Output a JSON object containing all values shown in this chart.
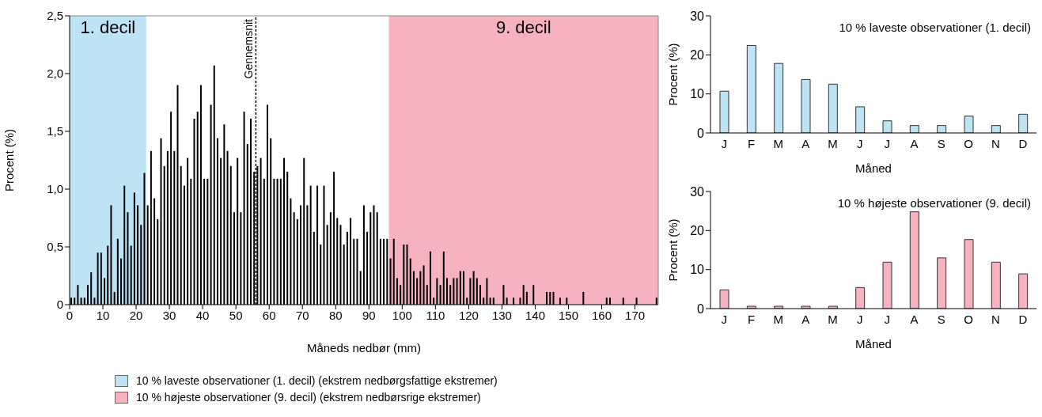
{
  "chart_data": [
    {
      "type": "histogram",
      "xlabel": "Måneds nedbør (mm)",
      "ylabel": "Procent (%)",
      "color": "#000000",
      "bins": [
        0,
        1,
        2,
        3,
        4,
        5,
        6,
        7,
        8,
        9,
        10,
        11,
        12,
        13,
        14,
        15,
        16,
        17,
        18,
        19,
        20,
        21,
        22,
        23,
        24,
        25,
        26,
        27,
        28,
        29,
        30,
        31,
        32,
        33,
        34,
        35,
        36,
        37,
        38,
        39,
        40,
        41,
        42,
        43,
        44,
        45,
        46,
        47,
        48,
        49,
        50,
        51,
        52,
        53,
        54,
        55,
        56,
        57,
        58,
        59,
        60,
        61,
        62,
        63,
        64,
        65,
        66,
        67,
        68,
        69,
        70,
        71,
        72,
        73,
        74,
        75,
        76,
        77,
        78,
        79,
        80,
        81,
        82,
        83,
        84,
        85,
        86,
        87,
        88,
        89,
        90,
        91,
        92,
        93,
        94,
        95,
        96,
        97,
        98,
        99,
        100,
        101,
        102,
        103,
        104,
        105,
        106,
        107,
        108,
        109,
        110,
        111,
        112,
        113,
        114,
        115,
        116,
        117,
        118,
        119,
        120,
        121,
        122,
        123,
        124,
        125,
        126,
        127,
        128,
        129,
        130,
        131,
        132,
        133,
        134,
        135,
        136,
        137,
        138,
        139,
        140,
        141,
        142,
        143,
        144,
        145,
        146,
        147,
        148,
        149,
        150,
        151,
        152,
        153,
        154,
        155,
        156,
        157,
        158,
        159,
        160,
        161,
        162,
        163,
        164,
        165,
        166,
        167,
        168,
        169,
        170,
        171,
        172,
        173,
        174,
        175,
        176,
        177
      ],
      "values": [
        0.06,
        0.06,
        0.17,
        0.06,
        0.06,
        0.17,
        0.28,
        0.06,
        0.45,
        0.45,
        0.23,
        0.51,
        0.86,
        0.11,
        0.57,
        0.4,
        1.03,
        0.8,
        0.51,
        0.97,
        0.86,
        0.69,
        1.14,
        0.86,
        1.33,
        0.92,
        0.74,
        1.44,
        1.2,
        1.33,
        1.67,
        1.33,
        1.9,
        1.2,
        1.03,
        1.27,
        1.09,
        1.61,
        1.67,
        1.9,
        1.09,
        1.09,
        1.73,
        2.07,
        1.44,
        1.27,
        1.56,
        1.33,
        1.2,
        0.8,
        1.27,
        0.8,
        1.67,
        1.39,
        1.61,
        1.15,
        1.2,
        1.27,
        1.09,
        1.73,
        1.44,
        1.09,
        1.09,
        1.09,
        1.27,
        1.15,
        0.92,
        0.8,
        0.74,
        0.86,
        1.27,
        0.86,
        1.03,
        0.63,
        1.03,
        0.52,
        1.03,
        0.69,
        0.8,
        1.15,
        0.75,
        0.69,
        0.52,
        0.63,
        0.75,
        0.57,
        0.57,
        0.29,
        0.86,
        0.63,
        0.8,
        0.86,
        0.8,
        0.57,
        0.57,
        0.57,
        0.4,
        0.57,
        0.23,
        0.17,
        0.52,
        0.52,
        0.4,
        0.29,
        0.23,
        0.29,
        0.34,
        0.17,
        0.46,
        0.06,
        0.23,
        0.17,
        0.46,
        0.23,
        0.17,
        0.23,
        0.23,
        0.29,
        0.29,
        0.06,
        0.23,
        0.29,
        0.23,
        0.17,
        0.06,
        0.23,
        0.06,
        0.06,
        0,
        0,
        0.17,
        0.06,
        0,
        0.06,
        0,
        0.06,
        0.17,
        0.11,
        0,
        0.17,
        0,
        0,
        0,
        0.11,
        0.11,
        0.11,
        0,
        0.06,
        0,
        0.06,
        0,
        0,
        0,
        0,
        0.11,
        0,
        0,
        0,
        0,
        0,
        0,
        0.06,
        0.06,
        0,
        0,
        0,
        0.06,
        0,
        0,
        0,
        0.06,
        0,
        0,
        0,
        0,
        0,
        0.06
      ],
      "xlim": [
        0,
        177
      ],
      "xticks": [
        0,
        10,
        20,
        30,
        40,
        50,
        60,
        70,
        80,
        90,
        100,
        110,
        120,
        130,
        140,
        150,
        160,
        170
      ],
      "ylim": [
        0,
        2.5
      ],
      "yticks": [
        0,
        {
          "value": 0.5,
          "label": "0,5"
        },
        {
          "value": 1,
          "label": "1,0"
        },
        {
          "value": 1.5,
          "label": "1,5"
        },
        {
          "value": 2,
          "label": "2,0"
        },
        {
          "value": 2.5,
          "label": "2,5"
        }
      ],
      "bands": [
        {
          "axis": "x",
          "from": 0,
          "to": 23,
          "label": "1. decil",
          "color": "#bde3f4"
        },
        {
          "axis": "x",
          "from": 96,
          "to": 177,
          "label": "9. decil",
          "color": "#f7b2bf"
        }
      ],
      "ref_lines": [
        {
          "axis": "x",
          "value": 56,
          "label": "Gennemsnit",
          "line_style": "dotted"
        }
      ],
      "annotations": [
        "10 % laveste observationer (1. decil) (ekstrem nedbørgsfattige ekstremer)",
        "10 % højeste observationer (9. decil) (ekstrem nedbørsrige ekstremer)"
      ]
    },
    {
      "type": "bar",
      "title": "10 % laveste observationer (1. decil)",
      "xlabel": "Måned",
      "ylabel": "Procent (%)",
      "color": "#bde3f4",
      "categories": [
        "J",
        "F",
        "M",
        "A",
        "M",
        "J",
        "J",
        "A",
        "S",
        "O",
        "N",
        "D"
      ],
      "values": [
        10.7,
        22.4,
        17.8,
        13.7,
        12.5,
        6.7,
        3.1,
        1.9,
        1.9,
        4.3,
        1.9,
        4.8
      ],
      "ylim": [
        0,
        30
      ],
      "yticks": [
        0,
        10,
        20,
        30
      ]
    },
    {
      "type": "bar",
      "title": "10 % højeste observationer (9. decil)",
      "xlabel": "Måned",
      "ylabel": "Procent (%)",
      "color": "#f7b2bf",
      "categories": [
        "J",
        "F",
        "M",
        "A",
        "M",
        "J",
        "J",
        "A",
        "S",
        "O",
        "N",
        "D"
      ],
      "values": [
        4.8,
        0.6,
        0.6,
        0.6,
        0.6,
        5.4,
        11.9,
        24.8,
        13,
        17.7,
        11.9,
        8.9
      ],
      "ylim": [
        0,
        30
      ],
      "yticks": [
        0,
        10,
        20,
        30
      ]
    }
  ]
}
